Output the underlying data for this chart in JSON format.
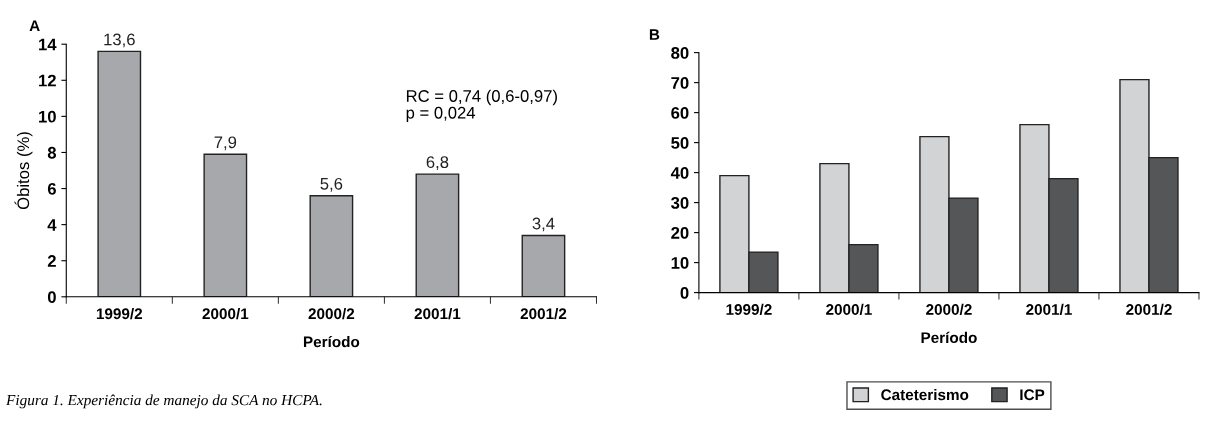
{
  "chart_data": [
    {
      "type": "bar",
      "title": "A",
      "xlabel": "Período",
      "ylabel": "Óbitos (%)",
      "categories": [
        "1999/2",
        "2000/1",
        "2000/2",
        "2001/1",
        "2001/2"
      ],
      "values": [
        13.6,
        7.9,
        5.6,
        6.8,
        3.4
      ],
      "value_labels": [
        "13,6",
        "7,9",
        "5,6",
        "6,8",
        "3,4"
      ],
      "color": "#a7a8ab",
      "ylim": [
        0,
        14
      ],
      "yticks": [
        0,
        2,
        4,
        6,
        8,
        10,
        12,
        14
      ],
      "grid": false,
      "legend": false,
      "annotations": [
        "RC = 0,74 (0,6-0,97)\np = 0,024",
        "Figura 1. Experiência de manejo da SCA no HCPA."
      ]
    },
    {
      "type": "bar",
      "title": "B",
      "xlabel": "Período",
      "categories": [
        "1999/2",
        "2000/1",
        "2000/2",
        "2001/1",
        "2001/2"
      ],
      "series": [
        {
          "name": "Cateterismo",
          "color": "#d2d3d5",
          "values": [
            39,
            43,
            52,
            56,
            71
          ]
        },
        {
          "name": "ICP",
          "color": "#555658",
          "values": [
            13.5,
            16,
            31.5,
            38,
            45
          ]
        }
      ],
      "ylim": [
        0,
        80
      ],
      "yticks": [
        0,
        10,
        20,
        30,
        40,
        50,
        60,
        70,
        80
      ],
      "grid": false,
      "legend": "bottom"
    }
  ]
}
